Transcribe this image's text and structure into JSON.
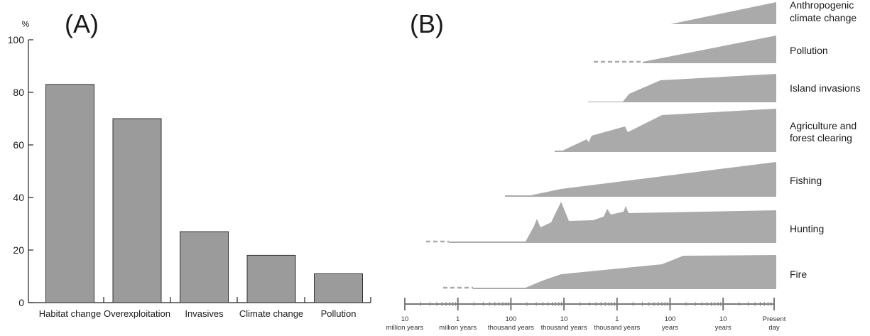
{
  "chart_data": [
    {
      "type": "bar",
      "panel_label": "(A)",
      "unit_label": "%",
      "categories": [
        "Habitat change",
        "Overexploitation",
        "Invasives",
        "Climate change",
        "Pollution"
      ],
      "values": [
        83,
        70,
        27,
        18,
        11
      ],
      "ylim": [
        0,
        100
      ],
      "yticks": [
        0,
        20,
        40,
        60,
        80,
        100
      ],
      "bar_color": "#9b9b9c",
      "grid": false
    },
    {
      "type": "area",
      "panel_label": "(B)",
      "series": [
        {
          "name": "Anthropogenic climate change",
          "lines": [
            "Anthropogenic",
            "climate change"
          ]
        },
        {
          "name": "Pollution",
          "lines": [
            "Pollution"
          ]
        },
        {
          "name": "Island invasions",
          "lines": [
            "Island invasions"
          ]
        },
        {
          "name": "Agriculture and forest clearing",
          "lines": [
            "Agriculture and",
            "forest clearing"
          ]
        },
        {
          "name": "Fishing",
          "lines": [
            "Fishing"
          ]
        },
        {
          "name": "Hunting",
          "lines": [
            "Hunting"
          ]
        },
        {
          "name": "Fire",
          "lines": [
            "Fire"
          ]
        }
      ],
      "x_axis": {
        "scale": "log time before present",
        "tick_labels": [
          [
            "10",
            "million years"
          ],
          [
            "1",
            "million years"
          ],
          [
            "100",
            "thousand years"
          ],
          [
            "10",
            "thousand years"
          ],
          [
            "1",
            "thousand years"
          ],
          [
            "100",
            "years"
          ],
          [
            "10",
            "years"
          ],
          [
            "Present",
            "day"
          ]
        ]
      },
      "fill_color": "#aaaaaa"
    }
  ]
}
